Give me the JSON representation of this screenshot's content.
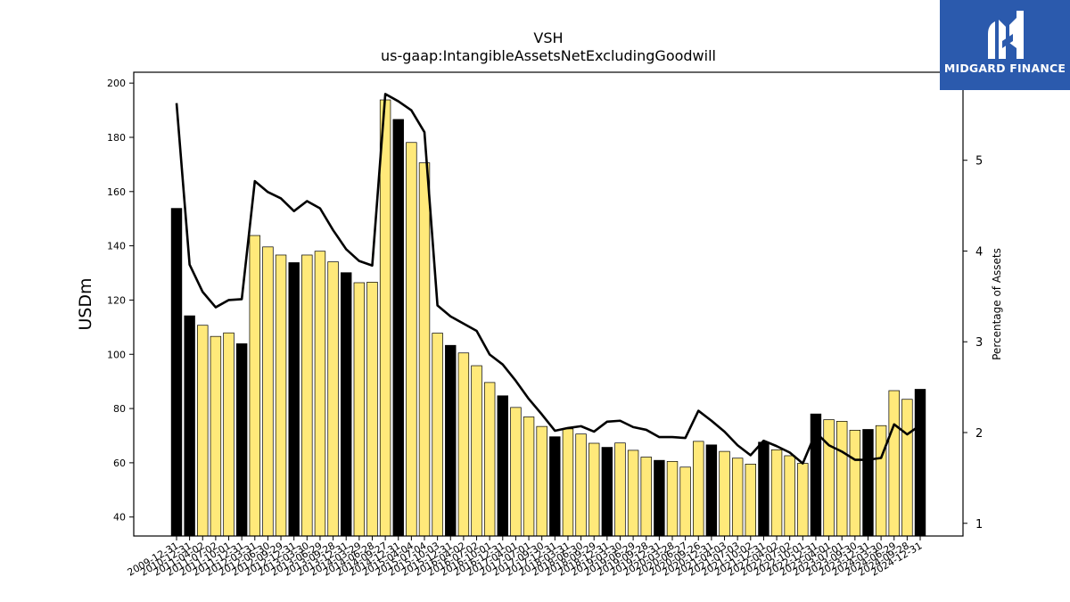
{
  "chart_data": {
    "type": "bar",
    "title": "VSH",
    "subtitle": "us-gaap:IntangibleAssetsNetExcludingGoodwill",
    "ylabel": "USDm",
    "y2label": "Percentage of Assets",
    "ylim": [
      33,
      204
    ],
    "y2lim": [
      0.86,
      5.97
    ],
    "yticks": [
      40,
      60,
      80,
      100,
      120,
      140,
      160,
      180,
      200
    ],
    "y2ticks": [
      1,
      2,
      3,
      4,
      5
    ],
    "grid": false,
    "categories": [
      "2009-12-31",
      "2010-12-31",
      "2011-04-02",
      "2011-07-02",
      "2011-10-01",
      "2011-12-31",
      "2012-03-31",
      "2012-06-30",
      "2012-09-29",
      "2012-12-31",
      "2013-03-30",
      "2013-06-29",
      "2013-09-28",
      "2013-12-31",
      "2014-03-29",
      "2014-06-28",
      "2014-09-27",
      "2014-12-31",
      "2015-04-04",
      "2015-07-04",
      "2015-10-03",
      "2015-12-31",
      "2016-04-02",
      "2016-07-02",
      "2016-10-01",
      "2016-12-31",
      "2017-04-01",
      "2017-07-01",
      "2017-09-30",
      "2017-12-31",
      "2018-03-31",
      "2018-06-30",
      "2018-09-29",
      "2018-12-31",
      "2019-03-30",
      "2019-06-29",
      "2019-09-28",
      "2019-12-31",
      "2020-03-28",
      "2020-06-27",
      "2020-09-26",
      "2020-12-31",
      "2021-04-03",
      "2021-07-03",
      "2021-10-02",
      "2021-12-31",
      "2022-04-02",
      "2022-07-02",
      "2022-10-01",
      "2022-12-31",
      "2023-04-01",
      "2023-07-01",
      "2023-09-30",
      "2023-12-31",
      "2024-03-30",
      "2024-06-29",
      "2024-09-28",
      "2024-12-31"
    ],
    "highlight_annual": [
      true,
      true,
      false,
      false,
      false,
      true,
      false,
      false,
      false,
      true,
      false,
      false,
      false,
      true,
      false,
      false,
      false,
      true,
      false,
      false,
      false,
      true,
      false,
      false,
      false,
      true,
      false,
      false,
      false,
      true,
      false,
      false,
      false,
      true,
      false,
      false,
      false,
      true,
      false,
      false,
      false,
      true,
      false,
      false,
      false,
      true,
      false,
      false,
      false,
      true,
      false,
      false,
      false,
      true,
      false,
      false,
      false,
      true
    ],
    "series": [
      {
        "name": "",
        "axis": "left",
        "values": [
          153.8,
          114.2,
          110.7,
          106.6,
          107.9,
          103.9,
          143.8,
          139.6,
          136.6,
          133.8,
          136.6,
          138.0,
          134.1,
          130.1,
          126.4,
          126.6,
          193.8,
          186.6,
          178.1,
          170.6,
          107.8,
          103.3,
          100.5,
          95.8,
          89.6,
          84.7,
          80.4,
          76.9,
          73.4,
          69.6,
          72.5,
          70.6,
          67.2,
          65.7,
          67.3,
          64.6,
          62.1,
          60.9,
          60.5,
          58.4,
          67.9,
          66.6,
          64.2,
          61.7,
          59.5,
          67.6,
          64.8,
          62.6,
          59.8,
          78.0,
          75.9,
          75.3,
          72.0,
          72.3,
          73.7,
          86.6,
          83.4,
          87.1
        ]
      },
      {
        "name": "",
        "axis": "right",
        "type": "line",
        "values": [
          5.63,
          3.85,
          3.55,
          3.38,
          3.46,
          3.47,
          4.77,
          4.65,
          4.58,
          4.44,
          4.55,
          4.47,
          4.23,
          4.02,
          3.89,
          3.84,
          5.73,
          5.65,
          5.55,
          5.31,
          3.4,
          3.28,
          3.2,
          3.12,
          2.86,
          2.75,
          2.57,
          2.37,
          2.2,
          2.02,
          2.05,
          2.07,
          2.01,
          2.12,
          2.13,
          2.06,
          2.03,
          1.95,
          1.95,
          1.94,
          2.24,
          2.13,
          2.01,
          1.86,
          1.75,
          1.91,
          1.85,
          1.78,
          1.66,
          2.0,
          1.86,
          1.79,
          1.7,
          1.7,
          1.72,
          2.09,
          1.98,
          2.08
        ]
      }
    ]
  },
  "brand": {
    "name": "MIDGARD FINANCE",
    "logo_icon": "midgard-m-icon",
    "background": "#2b5aad"
  },
  "colors": {
    "annual_bar": "#000000",
    "quarter_bar": "#ffe97a",
    "line": "#000000"
  }
}
